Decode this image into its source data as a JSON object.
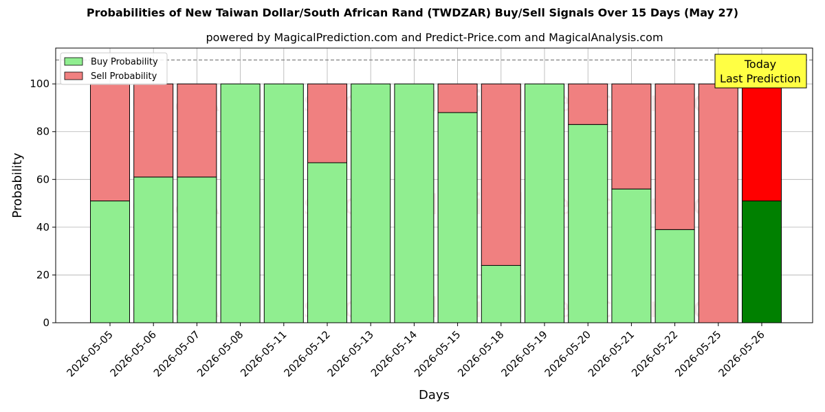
{
  "colors": {
    "buy": "#90ee90",
    "sell": "#f08080",
    "buy_today": "#008000",
    "sell_today": "#ff0000",
    "today_box": "#ffff44",
    "grid": "#b0b0b0",
    "watermark": "rgba(200,120,120,0.18)"
  },
  "watermark_texts": [
    "MagicalAnalysis.com",
    "MagicalPrediction.com"
  ],
  "today_box": {
    "line1": "Today",
    "line2": "Last Prediction"
  },
  "chart_data": {
    "type": "bar",
    "stacked": true,
    "title": "Probabilities of New Taiwan Dollar/South African Rand (TWDZAR) Buy/Sell Signals Over 15 Days (May 27)",
    "subtitle": "powered by MagicalPrediction.com and Predict-Price.com and MagicalAnalysis.com",
    "xlabel": "Days",
    "ylabel": "Probability",
    "ylim": [
      0,
      115
    ],
    "yticks": [
      0,
      20,
      40,
      60,
      80,
      100
    ],
    "reference_line": 110,
    "grid": true,
    "legend": "top-left",
    "categories": [
      "2026-05-05",
      "2026-05-06",
      "2026-05-07",
      "2026-05-08",
      "2026-05-11",
      "2026-05-12",
      "2026-05-13",
      "2026-05-14",
      "2026-05-15",
      "2026-05-18",
      "2026-05-19",
      "2026-05-20",
      "2026-05-21",
      "2026-05-22",
      "2026-05-25",
      "2026-05-26"
    ],
    "series": [
      {
        "name": "Buy Probability",
        "values": [
          51,
          61,
          61,
          100,
          100,
          67,
          100,
          100,
          88,
          24,
          100,
          83,
          56,
          39,
          0,
          51
        ]
      },
      {
        "name": "Sell Probability",
        "values": [
          49,
          39,
          39,
          0,
          0,
          33,
          0,
          0,
          12,
          76,
          0,
          17,
          44,
          61,
          100,
          49
        ]
      }
    ]
  }
}
